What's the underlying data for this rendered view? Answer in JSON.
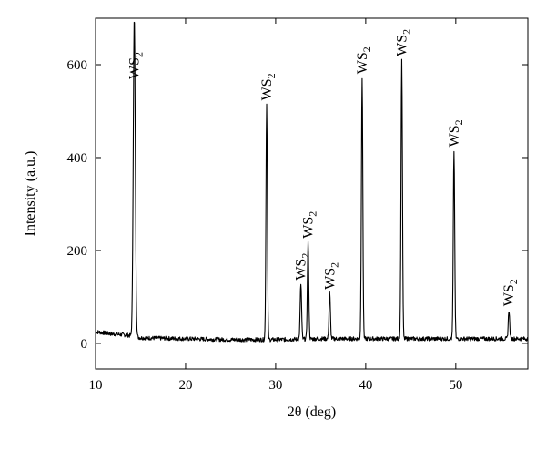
{
  "chart_data": {
    "type": "line",
    "title": "",
    "xlabel": "2θ (deg)",
    "ylabel": "Intensity (a.u.)",
    "xlim": [
      10,
      58
    ],
    "ylim": [
      -55,
      700
    ],
    "x_ticks": [
      10,
      20,
      30,
      40,
      50
    ],
    "y_ticks": [
      0,
      200,
      400,
      600
    ],
    "x_tick_labels": [
      "10",
      "20",
      "30",
      "40",
      "50"
    ],
    "y_tick_labels": [
      "0",
      "200",
      "400",
      "600"
    ],
    "grid": false,
    "legend": "none",
    "line_color": "#000000",
    "series": [
      {
        "baseline": [
          [
            10,
            25
          ],
          [
            12,
            20
          ],
          [
            13.5,
            18
          ],
          [
            15,
            12
          ],
          [
            20,
            10
          ],
          [
            25,
            8
          ],
          [
            30,
            8
          ],
          [
            35,
            10
          ],
          [
            40,
            10
          ],
          [
            45,
            10
          ],
          [
            50,
            10
          ],
          [
            55,
            10
          ],
          [
            58,
            10
          ]
        ],
        "peaks": [
          {
            "x": 14.3,
            "y": 700
          },
          {
            "x": 29.0,
            "y": 515
          },
          {
            "x": 32.8,
            "y": 128
          },
          {
            "x": 33.6,
            "y": 218
          },
          {
            "x": 36.0,
            "y": 108
          },
          {
            "x": 39.6,
            "y": 572
          },
          {
            "x": 44.0,
            "y": 610
          },
          {
            "x": 49.8,
            "y": 415
          },
          {
            "x": 55.9,
            "y": 72
          }
        ]
      }
    ],
    "annotations": [
      {
        "text": "WS",
        "sub": "2",
        "x": 14.3
      },
      {
        "text": "WS",
        "sub": "2",
        "x": 29.0
      },
      {
        "text": "WS",
        "sub": "2",
        "x": 32.8
      },
      {
        "text": "WS",
        "sub": "2",
        "x": 33.6
      },
      {
        "text": "WS",
        "sub": "2",
        "x": 36.0
      },
      {
        "text": "WS",
        "sub": "2",
        "x": 39.6
      },
      {
        "text": "WS",
        "sub": "2",
        "x": 44.0
      },
      {
        "text": "WS",
        "sub": "2",
        "x": 49.8
      },
      {
        "text": "WS",
        "sub": "2",
        "x": 55.9
      }
    ]
  }
}
